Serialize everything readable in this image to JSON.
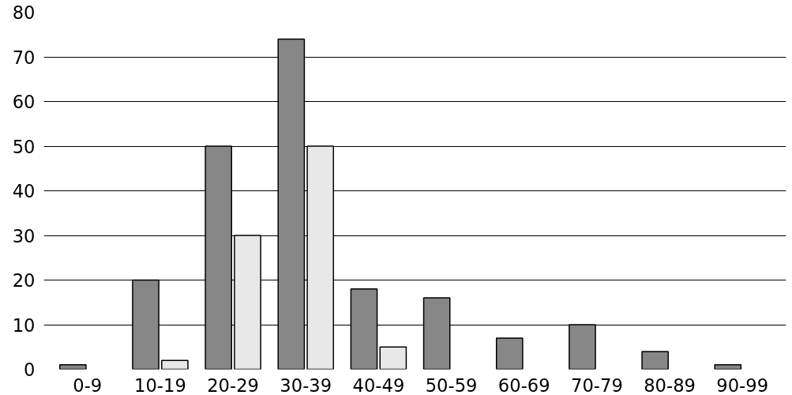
{
  "chart_data": {
    "type": "bar",
    "categories": [
      "0-9",
      "10-19",
      "20-29",
      "30-39",
      "40-49",
      "50-59",
      "60-69",
      "70-79",
      "80-89",
      "90-99"
    ],
    "series": [
      {
        "color": "#878787",
        "values": [
          1,
          20,
          50,
          74,
          18,
          16,
          7,
          10,
          4,
          1
        ]
      },
      {
        "color": "#e8e8e8",
        "values": [
          null,
          2,
          30,
          50,
          5,
          null,
          null,
          null,
          null,
          null
        ]
      }
    ],
    "ylim": [
      0,
      80
    ],
    "yticks": [
      0,
      10,
      20,
      30,
      40,
      50,
      60,
      70,
      80
    ],
    "grid": "y"
  }
}
